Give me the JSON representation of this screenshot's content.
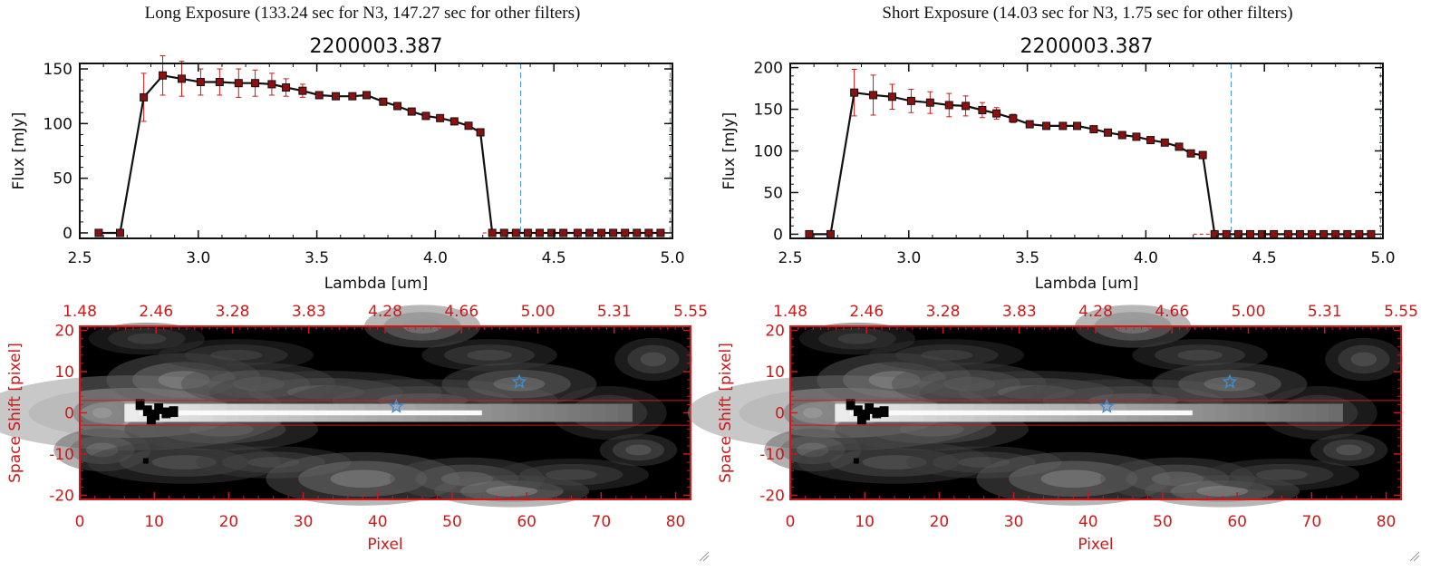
{
  "panels": [
    {
      "title": "Long Exposure (133.24 sec for N3, 147.27 sec for other filters)",
      "object_id": "2200003.387"
    },
    {
      "title": "Short Exposure (14.03 sec for N3, 1.75 sec for other filters)",
      "object_id": "2200003.387"
    }
  ],
  "chart_data": [
    {
      "type": "line",
      "title": "2200003.387",
      "xlabel": "Lambda [um]",
      "ylabel": "Flux [mJy]",
      "xlim": [
        2.5,
        5.0
      ],
      "ylim": [
        -5,
        155
      ],
      "xticks": [
        "2.5",
        "3.0",
        "3.5",
        "4.0",
        "4.5",
        "5.0"
      ],
      "yticks": [
        "0",
        "50",
        "100",
        "150"
      ],
      "vlines_um": [
        4.36,
        4.99
      ],
      "x": [
        2.58,
        2.67,
        2.77,
        2.85,
        2.93,
        3.01,
        3.09,
        3.17,
        3.24,
        3.31,
        3.37,
        3.44,
        3.51,
        3.58,
        3.65,
        3.71,
        3.78,
        3.84,
        3.9,
        3.96,
        4.02,
        4.08,
        4.14,
        4.19,
        4.24,
        4.29,
        4.34,
        4.39,
        4.44,
        4.49,
        4.54,
        4.6,
        4.65,
        4.7,
        4.75,
        4.8,
        4.85,
        4.9,
        4.95
      ],
      "y": [
        0,
        0,
        124,
        144,
        141,
        138,
        138,
        137,
        137,
        136,
        133,
        130,
        126,
        125,
        125,
        126,
        120,
        116,
        111,
        107,
        105,
        102,
        98,
        92,
        0,
        0,
        0,
        0,
        0,
        0,
        0,
        0,
        0,
        0,
        0,
        0,
        0,
        0,
        0
      ],
      "yerr": [
        0,
        0,
        22,
        18,
        16,
        12,
        12,
        13,
        12,
        10,
        8,
        6,
        3,
        3,
        3,
        3,
        3,
        3,
        3,
        3,
        3,
        3,
        3,
        3,
        0,
        0,
        0,
        0,
        0,
        0,
        0,
        0,
        0,
        0,
        0,
        0,
        0,
        0,
        0
      ]
    },
    {
      "type": "line",
      "title": "2200003.387",
      "xlabel": "Lambda [um]",
      "ylabel": "Flux [mJy]",
      "xlim": [
        2.5,
        5.0
      ],
      "ylim": [
        -5,
        205
      ],
      "xticks": [
        "2.5",
        "3.0",
        "3.5",
        "4.0",
        "4.5",
        "5.0"
      ],
      "yticks": [
        "0",
        "50",
        "100",
        "150",
        "200"
      ],
      "vlines_um": [
        4.36,
        4.99
      ],
      "x": [
        2.58,
        2.67,
        2.77,
        2.85,
        2.93,
        3.01,
        3.09,
        3.17,
        3.24,
        3.31,
        3.37,
        3.44,
        3.51,
        3.58,
        3.65,
        3.71,
        3.78,
        3.84,
        3.9,
        3.96,
        4.02,
        4.08,
        4.14,
        4.19,
        4.24,
        4.29,
        4.34,
        4.39,
        4.44,
        4.49,
        4.54,
        4.6,
        4.65,
        4.7,
        4.75,
        4.8,
        4.85,
        4.9,
        4.95
      ],
      "y": [
        0,
        0,
        170,
        167,
        165,
        160,
        158,
        155,
        154,
        149,
        145,
        139,
        132,
        130,
        130,
        130,
        126,
        122,
        119,
        117,
        113,
        110,
        105,
        97,
        95,
        0,
        0,
        0,
        0,
        0,
        0,
        0,
        0,
        0,
        0,
        0,
        0,
        0,
        0
      ],
      "yerr": [
        0,
        0,
        28,
        24,
        15,
        14,
        13,
        14,
        12,
        9,
        7,
        5,
        3,
        3,
        3,
        3,
        3,
        3,
        3,
        3,
        3,
        3,
        3,
        3,
        3,
        0,
        0,
        0,
        0,
        0,
        0,
        0,
        0,
        0,
        0,
        0,
        0,
        0,
        0
      ]
    },
    {
      "type": "heatmap",
      "xlabel": "Pixel",
      "ylabel": "Space Shift [pixel]",
      "xlim": [
        0,
        82
      ],
      "ylim": [
        -21,
        21
      ],
      "xticks": [
        "0",
        "10",
        "20",
        "30",
        "40",
        "50",
        "60",
        "70",
        "80"
      ],
      "yticks": [
        "-20",
        "-10",
        "0",
        "10",
        "20"
      ],
      "top_ticks": [
        "1.48",
        "2.46",
        "3.28",
        "3.83",
        "4.28",
        "4.66",
        "5.00",
        "5.31",
        "5.55"
      ],
      "extraction_band": [
        -3,
        3
      ],
      "markers": [
        {
          "x": 42.5,
          "y": 1.5
        },
        {
          "x": 59,
          "y": 7.5
        }
      ]
    },
    {
      "type": "heatmap",
      "xlabel": "Pixel",
      "ylabel": "Space Shift [pixel]",
      "xlim": [
        0,
        82
      ],
      "ylim": [
        -21,
        21
      ],
      "xticks": [
        "0",
        "10",
        "20",
        "30",
        "40",
        "50",
        "60",
        "70",
        "80"
      ],
      "yticks": [
        "-20",
        "-10",
        "0",
        "10",
        "20"
      ],
      "top_ticks": [
        "1.48",
        "2.46",
        "3.28",
        "3.83",
        "4.28",
        "4.66",
        "5.00",
        "5.31",
        "5.55"
      ],
      "extraction_band": [
        -3,
        3
      ],
      "markers": [
        {
          "x": 42.5,
          "y": 1.5
        },
        {
          "x": 59,
          "y": 7.5
        }
      ]
    }
  ]
}
